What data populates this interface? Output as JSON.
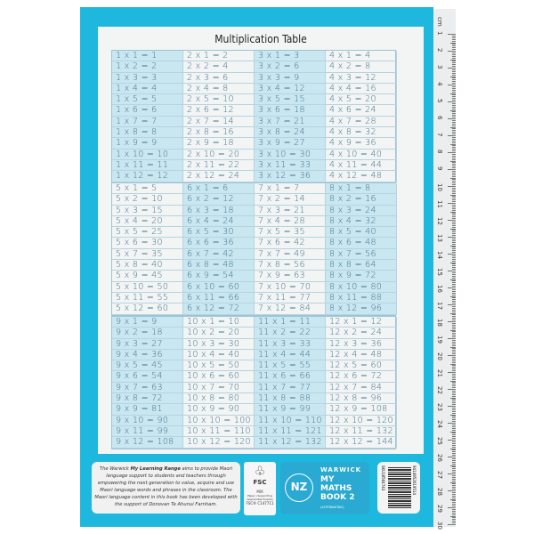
{
  "title": "Multiplication Table",
  "blocks": [
    {
      "shaded_columns": [
        0,
        2
      ],
      "columns": [
        [
          "1 x 1 = 1",
          "1 x 2 = 2",
          "1 x 3 = 3",
          "1 x 4 = 4",
          "1 x 5 = 5",
          "1 x 6 = 6",
          "1 x 7 = 7",
          "1 x 8 = 8",
          "1 x 9 = 9",
          "1 x 10 = 10",
          "1 x 11 = 11",
          "1 x 12 = 12"
        ],
        [
          "2 x 1 = 2",
          "2 x 2 = 4",
          "2 x 3 = 6",
          "2 x 4 = 8",
          "2 x 5 = 10",
          "2 x 6 = 12",
          "2 x 7 = 14",
          "2 x 8 = 16",
          "2 x 9 = 18",
          "2 x 10 = 20",
          "2 x 11 = 22",
          "2 x 12 = 24"
        ],
        [
          "3 x 1 = 3",
          "3 x 2 = 6",
          "3 x 3 = 9",
          "3 x 4 = 12",
          "3 x 5 = 15",
          "3 x 6 = 18",
          "3 x 7 = 21",
          "3 x 8 = 24",
          "3 x 9 = 27",
          "3 x 10 = 30",
          "3 x 11 = 33",
          "3 x 12 = 36"
        ],
        [
          "4 x 1 = 4",
          "4 x 2 = 8",
          "4 x 3 = 12",
          "4 x 4 = 16",
          "4 x 5 = 20",
          "4 x 6 = 24",
          "4 x 7 = 28",
          "4 x 8 = 32",
          "4 x 9 = 36",
          "4 x 10 = 40",
          "4 x 11 = 44",
          "4 x 12 = 48"
        ]
      ]
    },
    {
      "shaded_columns": [
        1,
        3
      ],
      "columns": [
        [
          "5 x 1 = 5",
          "5 x 2 = 10",
          "5 x 3 = 15",
          "5 x 4 = 20",
          "5 x 5 = 25",
          "5 x 6 = 30",
          "5 x 7 = 35",
          "5 x 8 = 40",
          "5 x 9 = 45",
          "5 x 10 = 50",
          "5 x 11 = 55",
          "5 x 12 = 60"
        ],
        [
          "6 x 1 = 6",
          "6 x 2 = 12",
          "6 x 3 = 18",
          "6 x 4 = 24",
          "6 x 5 = 30",
          "6 x 6 = 36",
          "6 x 7 = 42",
          "6 x 8 = 48",
          "6 x 9 = 54",
          "6 x 10 = 60",
          "6 x 11 = 66",
          "6 x 12 = 72"
        ],
        [
          "7 x 1 = 7",
          "7 x 2 = 14",
          "7 x 3 = 21",
          "7 x 4 = 28",
          "7 x 5 = 35",
          "7 x 6 = 42",
          "7 x 7 = 49",
          "7 x 8 = 56",
          "7 x 9 = 63",
          "7 x 10 = 70",
          "7 x 11 = 77",
          "7 x 12 = 84"
        ],
        [
          "8 x 1 = 8",
          "8 x 2 = 16",
          "8 x 3 = 24",
          "8 x 4 = 32",
          "8 x 5 = 40",
          "8 x 6 = 48",
          "8 x 7 = 56",
          "8 x 8 = 64",
          "8 x 9 = 72",
          "8 x 10 = 80",
          "8 x 11 = 88",
          "8 x 12 = 96"
        ]
      ]
    },
    {
      "shaded_columns": [
        0,
        2
      ],
      "columns": [
        [
          "9 x 1 = 9",
          "9 x 2 = 18",
          "9 x 3 = 27",
          "9 x 4 = 36",
          "9 x 5 = 45",
          "9 x 6 = 54",
          "9 x 7 = 63",
          "9 x 8 = 72",
          "9 x 9 = 81",
          "9 x 10 = 90",
          "9 x 11 = 99",
          "9 x 12 = 108"
        ],
        [
          "10 x 1 = 10",
          "10 x 2 = 20",
          "10 x 3 = 30",
          "10 x 4 = 40",
          "10 x 5 = 50",
          "10 x 6 = 60",
          "10 x 7 = 70",
          "10 x 8 = 80",
          "10 x 9 = 90",
          "10 x 10 = 100",
          "10 x 11 = 110",
          "10 x 12 = 120"
        ],
        [
          "11 x 1 = 11",
          "11 x 2 = 22",
          "11 x 3 = 33",
          "11 x 4 = 44",
          "11 x 5 = 55",
          "11 x 6 = 66",
          "11 x 7 = 77",
          "11 x 8 = 88",
          "11 x 9 = 99",
          "11 x 10 = 110",
          "11 x 11 = 121",
          "11 x 12 = 132"
        ],
        [
          "12 x 1 = 12",
          "12 x 2 = 24",
          "12 x 3 = 36",
          "12 x 4 = 48",
          "12 x 5 = 60",
          "12 x 6 = 72",
          "12 x 7 = 84",
          "12 x 8 = 96",
          "12 x 9 = 108",
          "12 x 10 = 120",
          "12 x 11 = 132",
          "12 x 12 = 144"
        ]
      ]
    }
  ],
  "ruler": [
    "cm",
    "1",
    "2",
    "3",
    "4",
    "5",
    "6",
    "7",
    "8",
    "9",
    "10",
    "11",
    "12",
    "13",
    "14",
    "15",
    "16",
    "17",
    "18",
    "19",
    "20",
    "21",
    "22",
    "23",
    "24",
    "25",
    "26",
    "27",
    "28",
    "29",
    "30"
  ],
  "blurb": {
    "pre": "The Warwick ",
    "bold": "My Learning Range",
    "post": " aims to provide Maori language support to students and teachers through empowering the next generation to value, acquire and use Maori language words and phrases in the classroom.  The Maori language content in this book has been developed with the support of Donovan Te Ahunui Farnham."
  },
  "fsc": {
    "logo": "FSC",
    "mix": "MIX",
    "sub": "Paper | Supporting responsible forestry",
    "code": "FSC® C147711"
  },
  "brand": {
    "maker": "WARWICK",
    "line1": "MY",
    "line2": "MATHS",
    "line3": "BOOK 2",
    "variant": "(ALTERNATING)",
    "badge": "NZ",
    "badge_ring": "DESIGNED IN NEW ZEALAND"
  },
  "barcode": {
    "sku": "SKU18504743",
    "number": "9414952019514"
  },
  "colors": {
    "cover": "#1eb8de",
    "shade": "#c9e7f1",
    "text": "#3d6f86"
  }
}
